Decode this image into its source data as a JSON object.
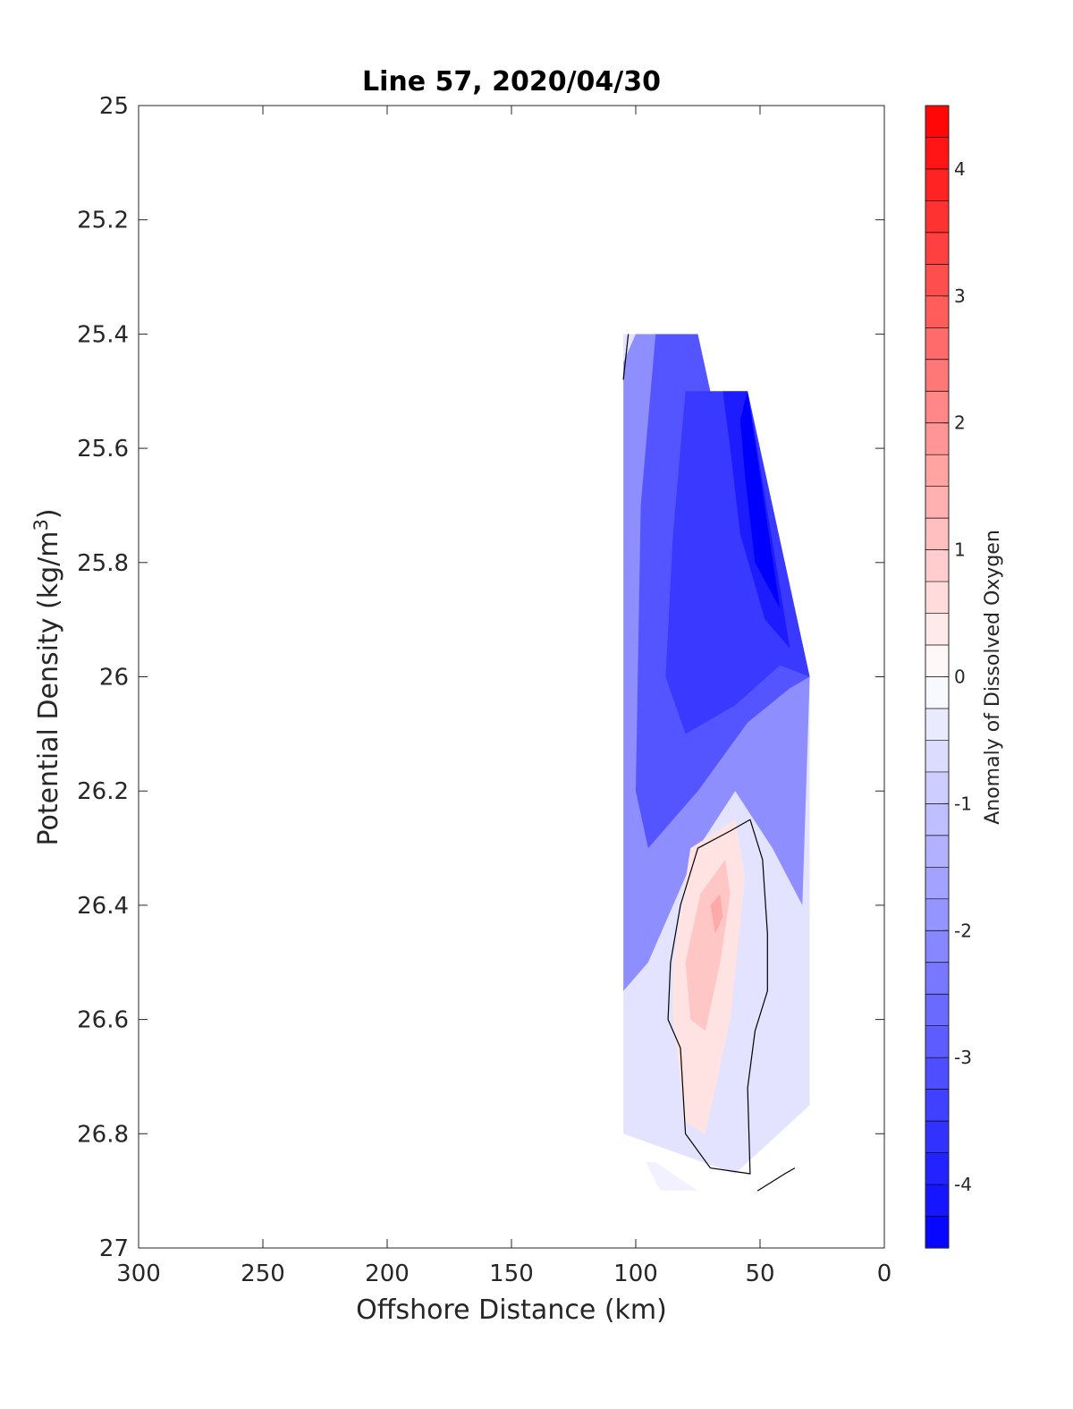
{
  "chart_data": {
    "type": "heatmap",
    "subtype": "filled-contour",
    "title": "Line 57, 2020/04/30",
    "xlabel": "Offshore Distance (km)",
    "ylabel_text": "Potential Density (kg/m",
    "ylabel_sup": "3",
    "ylabel_close": ")",
    "colorbar_label": "Anomaly of Dissolved Oxygen",
    "xlim": [
      300,
      0
    ],
    "x_reversed": true,
    "ylim": [
      25,
      27
    ],
    "y_reversed": true,
    "xticks": [
      300,
      250,
      200,
      150,
      100,
      50,
      0
    ],
    "yticks": [
      25,
      25.2,
      25.4,
      25.6,
      25.8,
      26,
      26.2,
      26.4,
      26.6,
      26.8,
      27
    ],
    "xtick_labels": [
      "300",
      "250",
      "200",
      "150",
      "100",
      "50",
      "0"
    ],
    "ytick_labels": [
      "25",
      "25.2",
      "25.4",
      "25.6",
      "25.8",
      "26",
      "26.2",
      "26.4",
      "26.6",
      "26.8",
      "27"
    ],
    "colorbar": {
      "min": -4.5,
      "max": 4.5,
      "step": 0.25,
      "ticks": [
        -4,
        -3,
        -2,
        -1,
        0,
        1,
        2,
        3,
        4
      ],
      "tick_labels": [
        "-4",
        "-3",
        "-2",
        "-1",
        "0",
        "1",
        "2",
        "3",
        "4"
      ],
      "colormap": "blue-white-red",
      "color_min": "#0000ff",
      "color_mid": "#ffffff",
      "color_max": "#ff0000"
    },
    "data_extent": {
      "outline": [
        [
          105,
          25.4
        ],
        [
          75,
          25.4
        ],
        [
          70,
          25.5
        ],
        [
          55,
          25.5
        ],
        [
          30,
          26.0
        ],
        [
          30,
          26.9
        ],
        [
          105,
          26.9
        ]
      ]
    },
    "regions": [
      {
        "value": -0.5,
        "outline": [
          [
            105,
            25.4
          ],
          [
            75,
            25.4
          ],
          [
            70,
            25.5
          ],
          [
            55,
            25.5
          ],
          [
            30,
            26.0
          ],
          [
            30,
            26.75
          ],
          [
            60,
            26.87
          ],
          [
            105,
            26.8
          ]
        ]
      },
      {
        "value": -2.0,
        "outline": [
          [
            100,
            25.4
          ],
          [
            75,
            25.4
          ],
          [
            70,
            25.5
          ],
          [
            55,
            25.5
          ],
          [
            30,
            26.0
          ],
          [
            33,
            26.4
          ],
          [
            45,
            26.3
          ],
          [
            60,
            26.2
          ],
          [
            75,
            26.3
          ],
          [
            95,
            26.5
          ],
          [
            105,
            26.55
          ],
          [
            105,
            25.45
          ]
        ]
      },
      {
        "value": -3.0,
        "outline": [
          [
            92,
            25.4
          ],
          [
            75,
            25.4
          ],
          [
            70,
            25.5
          ],
          [
            55,
            25.5
          ],
          [
            30,
            26.0
          ],
          [
            38,
            26.02
          ],
          [
            55,
            26.08
          ],
          [
            75,
            26.2
          ],
          [
            95,
            26.3
          ],
          [
            100,
            26.2
          ],
          [
            98,
            25.7
          ]
        ]
      },
      {
        "value": -3.5,
        "outline": [
          [
            80,
            25.5
          ],
          [
            70,
            25.5
          ],
          [
            55,
            25.5
          ],
          [
            30,
            26.0
          ],
          [
            42,
            25.98
          ],
          [
            60,
            26.05
          ],
          [
            80,
            26.1
          ],
          [
            88,
            26.0
          ],
          [
            85,
            25.75
          ]
        ]
      },
      {
        "value": -4.0,
        "outline": [
          [
            65,
            25.5
          ],
          [
            55,
            25.5
          ],
          [
            38,
            25.95
          ],
          [
            48,
            25.9
          ],
          [
            58,
            25.75
          ],
          [
            62,
            25.6
          ]
        ]
      },
      {
        "value": -4.5,
        "outline": [
          [
            58,
            25.55
          ],
          [
            55,
            25.5
          ],
          [
            42,
            25.88
          ],
          [
            52,
            25.8
          ],
          [
            56,
            25.65
          ]
        ]
      },
      {
        "value": 0.5,
        "outline": [
          [
            60,
            26.25
          ],
          [
            78,
            26.3
          ],
          [
            85,
            26.5
          ],
          [
            85,
            26.6
          ],
          [
            80,
            26.78
          ],
          [
            72,
            26.8
          ],
          [
            62,
            26.6
          ],
          [
            56,
            26.35
          ]
        ]
      },
      {
        "value": 1.0,
        "outline": [
          [
            64,
            26.32
          ],
          [
            74,
            26.38
          ],
          [
            80,
            26.5
          ],
          [
            78,
            26.6
          ],
          [
            72,
            26.62
          ],
          [
            66,
            26.5
          ],
          [
            62,
            26.38
          ]
        ]
      },
      {
        "value": 1.5,
        "outline": [
          [
            66,
            26.38
          ],
          [
            70,
            26.4
          ],
          [
            68,
            26.45
          ],
          [
            65,
            26.42
          ]
        ]
      },
      {
        "value": -0.25,
        "outline": [
          [
            96,
            26.85
          ],
          [
            90,
            26.9
          ],
          [
            75,
            26.9
          ],
          [
            92,
            26.85
          ]
        ]
      }
    ],
    "zero_contours": [
      [
        [
          54,
          26.25
        ],
        [
          49,
          26.32
        ],
        [
          47,
          26.45
        ],
        [
          47,
          26.55
        ],
        [
          52,
          26.62
        ],
        [
          55,
          26.72
        ],
        [
          54,
          26.87
        ],
        [
          70,
          26.86
        ],
        [
          80,
          26.8
        ],
        [
          82,
          26.65
        ],
        [
          87,
          26.6
        ],
        [
          86,
          26.5
        ],
        [
          82,
          26.4
        ],
        [
          75,
          26.3
        ],
        [
          62,
          26.27
        ],
        [
          54,
          26.25
        ]
      ],
      [
        [
          105,
          25.48
        ],
        [
          103,
          25.4
        ]
      ],
      [
        [
          51,
          26.9
        ],
        [
          40,
          26.87
        ],
        [
          36,
          26.86
        ]
      ]
    ]
  }
}
